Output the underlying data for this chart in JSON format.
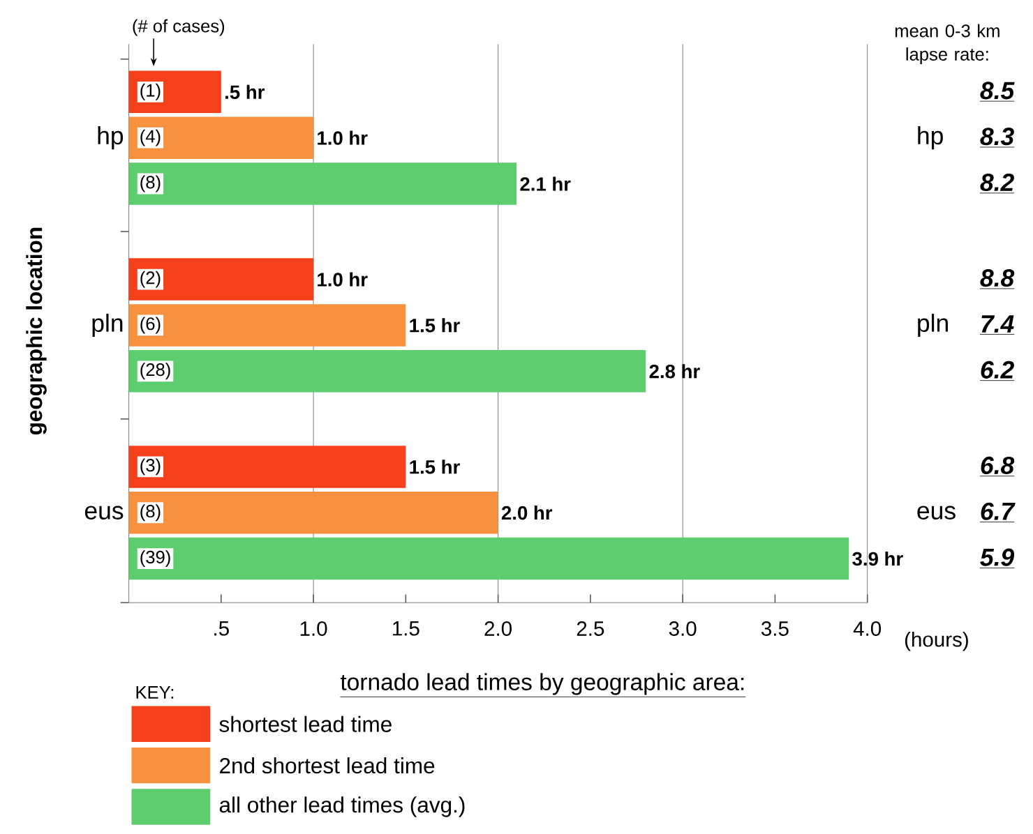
{
  "chart_data": {
    "type": "bar",
    "orientation": "horizontal",
    "title": "tornado lead times by geographic area:",
    "xlabel": "(hours)",
    "ylabel": "geographic location",
    "legend_title": "KEY:",
    "legend": "bottom left",
    "categories": [
      "hp",
      "pln",
      "eus"
    ],
    "series": [
      {
        "name": "shortest lead time",
        "color": "#f5411b",
        "values": [
          0.5,
          1.0,
          1.5
        ],
        "value_labels": [
          ".5 hr",
          "1.0 hr",
          "1.5 hr"
        ]
      },
      {
        "name": "2nd shortest lead time",
        "color": "#f5913f",
        "values": [
          1.0,
          1.5,
          2.0
        ],
        "value_labels": [
          "1.0 hr",
          "1.5 hr",
          "2.0 hr"
        ]
      },
      {
        "name": "all other lead times (avg.)",
        "color": "#5dcd6f",
        "values": [
          2.1,
          2.8,
          3.9
        ],
        "value_labels": [
          "2.1 hr",
          "2.8 hr",
          "3.9 hr"
        ]
      }
    ],
    "xlim": [
      0,
      4
    ],
    "xticks": [
      {
        "value": 0.5,
        "label": ".5"
      },
      {
        "value": 1,
        "label": "1.0"
      },
      {
        "value": 1.5,
        "label": "1.5"
      },
      {
        "value": 2,
        "label": "2.0"
      },
      {
        "value": 2.5,
        "label": "2.5"
      },
      {
        "value": 3,
        "label": "3.0"
      },
      {
        "value": 3.5,
        "label": "3.5"
      },
      {
        "value": 4,
        "label": "4.0"
      }
    ],
    "grid": "x",
    "annotations": [
      "(# of cases)",
      "(1)",
      "(4)",
      "(8)",
      "(2)",
      "(6)",
      "(28)",
      "(3)",
      "(8)",
      "(39)",
      "mean 0-3 km lapse rate:",
      "8.5",
      "8.3",
      "8.2",
      "8.8",
      "7.4",
      "6.2",
      "6.8",
      "6.7",
      "5.9"
    ]
  }
}
